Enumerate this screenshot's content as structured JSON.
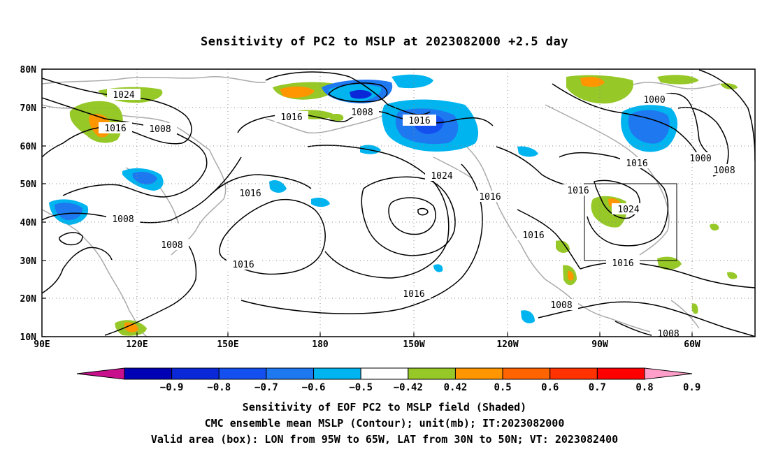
{
  "title": "Sensitivity of PC2 to MSLP at 2023082000 +2.5 day",
  "lat_labels": [
    "80N",
    "70N",
    "60N",
    "50N",
    "40N",
    "30N",
    "20N",
    "10N"
  ],
  "lon_labels": [
    "90E",
    "120E",
    "150E",
    "180",
    "150W",
    "120W",
    "90W",
    "60W"
  ],
  "contour_labels": [
    {
      "text": "1024",
      "id": "c1024a"
    },
    {
      "text": "1016",
      "id": "c1016a"
    },
    {
      "text": "1008",
      "id": "c1008a"
    },
    {
      "text": "1016",
      "id": "c1016b"
    },
    {
      "text": "1008",
      "id": "c1008b"
    },
    {
      "text": "1016",
      "id": "c1016c"
    },
    {
      "text": "1000",
      "id": "c1000a"
    },
    {
      "text": "1016",
      "id": "c1016d"
    },
    {
      "text": "1000",
      "id": "c1000b"
    },
    {
      "text": "1008",
      "id": "c1008c"
    },
    {
      "text": "1016",
      "id": "c1016e"
    },
    {
      "text": "1024",
      "id": "c1024b"
    },
    {
      "text": "1016",
      "id": "c1016f"
    },
    {
      "text": "1024",
      "id": "c1024c"
    },
    {
      "text": "1008",
      "id": "c1008d"
    },
    {
      "text": "1008",
      "id": "c1008e"
    },
    {
      "text": "1016",
      "id": "c1016g"
    },
    {
      "text": "1016",
      "id": "c1016h"
    },
    {
      "text": "1016",
      "id": "c1016i"
    },
    {
      "text": "1016",
      "id": "c1016j"
    },
    {
      "text": "1008",
      "id": "c1008f"
    },
    {
      "text": "1008",
      "id": "c1008g"
    }
  ],
  "colorbar": {
    "colors": [
      "#c8108c",
      "#0000b4",
      "#0a28d8",
      "#1450f0",
      "#1e78f0",
      "#00b4f0",
      "#ffffff",
      "#96c828",
      "#ff9600",
      "#ff6400",
      "#ff3200",
      "#ff0000",
      "#ff9ec8"
    ],
    "labels": [
      "−0.9",
      "−0.8",
      "−0.7",
      "−0.6",
      "−0.5",
      "−0.42",
      "0.42",
      "0.5",
      "0.6",
      "0.7",
      "0.8",
      "0.9"
    ]
  },
  "captions": [
    "Sensitivity of EOF PC2 to MSLP field (Shaded)",
    "CMC ensemble mean MSLP (Contour); unit(mb); IT:2023082000",
    "Valid area (box): LON from 95W to 65W, LAT from 30N to 50N; VT: 2023082400"
  ]
}
